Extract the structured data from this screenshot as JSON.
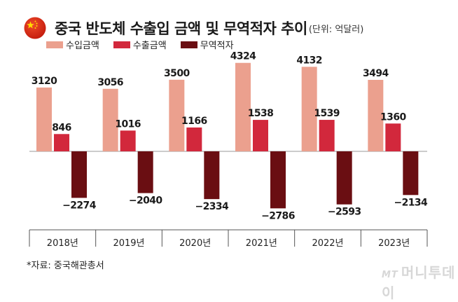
{
  "title": "중국 반도체 수출입 금액 및 무역적자 추이",
  "unit": "(단위: 억달러)",
  "source": "*자료: 중국해관총서",
  "watermark": {
    "logo": "MT",
    "name": "머니투데이"
  },
  "colors": {
    "import": "#eba08e",
    "export": "#d2283c",
    "deficit": "#6a0e12",
    "flag_red": "#de2910",
    "flag_star": "#ffde00"
  },
  "chart_data": {
    "type": "bar",
    "title": "중국 반도체 수출입 금액 및 무역적자 추이",
    "xlabel": "",
    "ylabel": "억달러",
    "categories": [
      "2018년",
      "2019년",
      "2020년",
      "2021년",
      "2022년",
      "2023년"
    ],
    "series": [
      {
        "name": "수입금액",
        "values": [
          3120,
          3056,
          3500,
          4324,
          4132,
          3494
        ]
      },
      {
        "name": "수출금액",
        "values": [
          846,
          1016,
          1166,
          1538,
          1539,
          1360
        ]
      },
      {
        "name": "무역적자",
        "values": [
          -2274,
          -2040,
          -2334,
          -2786,
          -2593,
          -2134
        ]
      }
    ],
    "labels": [
      [
        "3120",
        "3056",
        "3500",
        "4324",
        "4132",
        "3494"
      ],
      [
        "846",
        "1016",
        "1166",
        "1538",
        "1539",
        "1360"
      ],
      [
        "−2274",
        "−2040",
        "−2334",
        "−2786",
        "−2593",
        "−2134"
      ]
    ],
    "ylim": [
      -3000,
      4500
    ],
    "grid": false,
    "legend": "top-left"
  }
}
